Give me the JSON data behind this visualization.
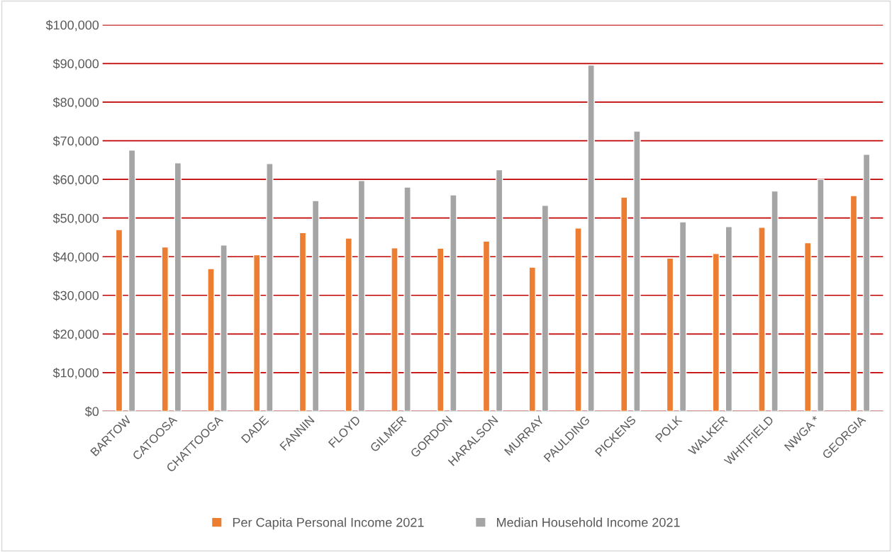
{
  "chart_data": {
    "type": "bar",
    "categories": [
      "BARTOW",
      "CATOOSA",
      "CHATTOOGA",
      "DADE",
      "FANNIN",
      "FLOYD",
      "GILMER",
      "GORDON",
      "HARALSON",
      "MURRAY",
      "PAULDING",
      "PICKENS",
      "POLK",
      "WALKER",
      "WHITFIELD",
      "NWGA *",
      "GEORGIA"
    ],
    "series": [
      {
        "name": "Per Capita Personal Income 2021",
        "color": "#ed7d31",
        "values": [
          47000,
          42500,
          36900,
          40500,
          46200,
          44800,
          42300,
          42200,
          44000,
          37300,
          47400,
          55400,
          39600,
          40800,
          47600,
          43600,
          55800
        ]
      },
      {
        "name": "Median Household Income 2021",
        "color": "#a5a5a5",
        "values": [
          67600,
          64300,
          43000,
          64100,
          54500,
          59700,
          58000,
          56000,
          62500,
          53300,
          89600,
          72500,
          49000,
          47800,
          57000,
          60000,
          66500
        ]
      }
    ],
    "ylim": [
      0,
      100000
    ],
    "yticks": [
      {
        "value": 0,
        "label": "$0"
      },
      {
        "value": 10000,
        "label": "$10,000"
      },
      {
        "value": 20000,
        "label": "$20,000"
      },
      {
        "value": 30000,
        "label": "$30,000"
      },
      {
        "value": 40000,
        "label": "$40,000"
      },
      {
        "value": 50000,
        "label": "$50,000"
      },
      {
        "value": 60000,
        "label": "$60,000"
      },
      {
        "value": 70000,
        "label": "$70,000"
      },
      {
        "value": 80000,
        "label": "$80,000"
      },
      {
        "value": 90000,
        "label": "$90,000"
      },
      {
        "value": 100000,
        "label": "$100,000"
      }
    ],
    "grid": "y",
    "legend": "bottom"
  }
}
